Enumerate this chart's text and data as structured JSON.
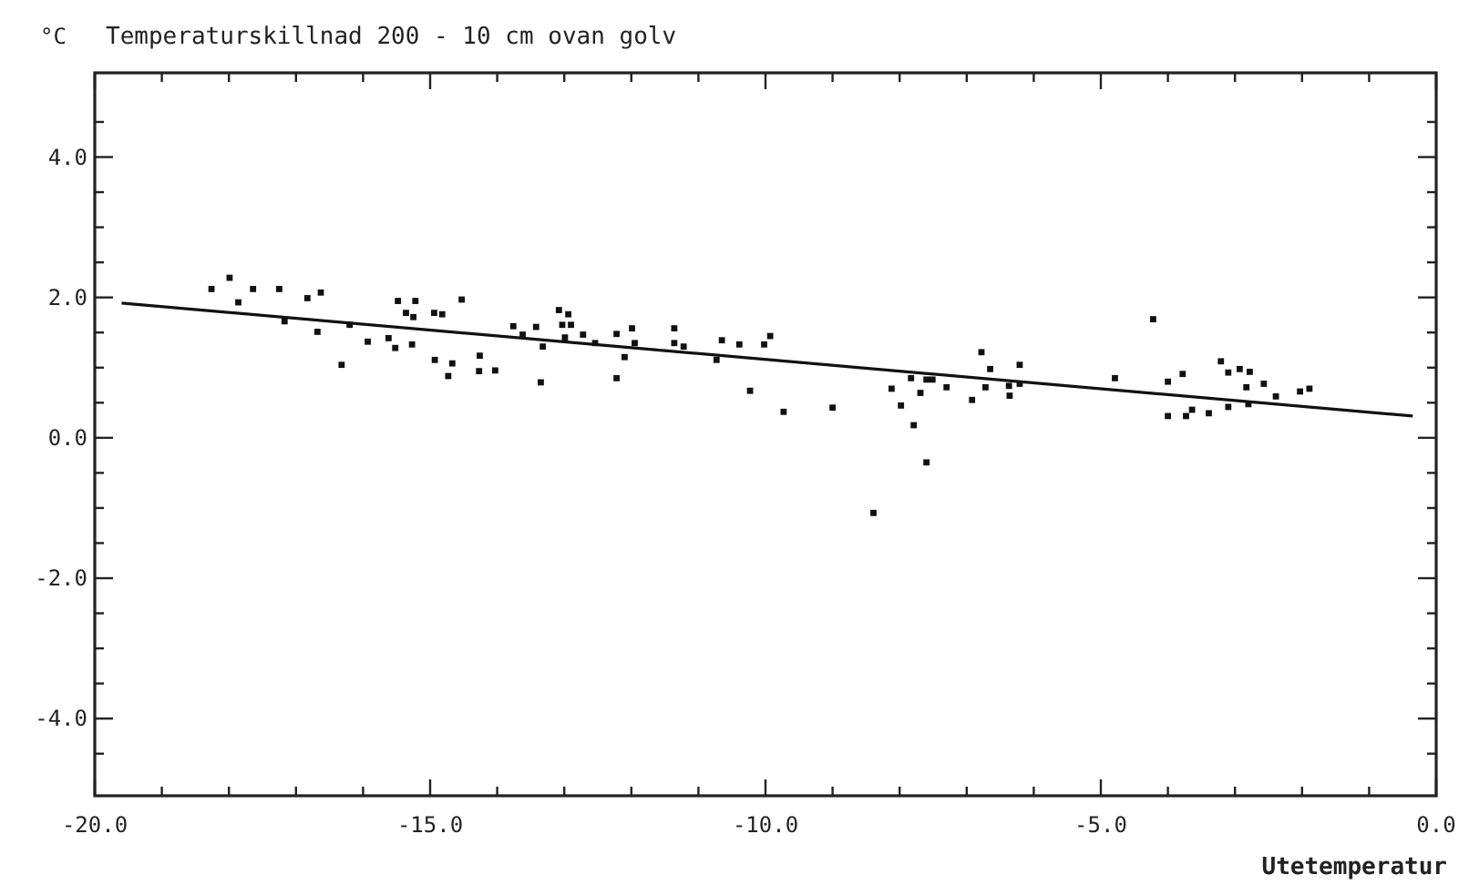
{
  "chart_data": {
    "type": "scatter",
    "title": "Temperaturskillnad 200 - 10 cm ovan golv",
    "ylabel": "°C",
    "xlabel": "Utetemperatur",
    "xlim": [
      -20,
      0
    ],
    "ylim": [
      -5.1,
      5.2
    ],
    "xticks": [
      {
        "value": -20,
        "label": "-20.0"
      },
      {
        "value": -19,
        "label": null
      },
      {
        "value": -18,
        "label": null
      },
      {
        "value": -17,
        "label": null
      },
      {
        "value": -16,
        "label": null
      },
      {
        "value": -15,
        "label": "-15.0"
      },
      {
        "value": -14,
        "label": null
      },
      {
        "value": -13,
        "label": null
      },
      {
        "value": -12,
        "label": null
      },
      {
        "value": -11,
        "label": null
      },
      {
        "value": -10,
        "label": "-10.0"
      },
      {
        "value": -9,
        "label": null
      },
      {
        "value": -8,
        "label": null
      },
      {
        "value": -7,
        "label": null
      },
      {
        "value": -6,
        "label": null
      },
      {
        "value": -5,
        "label": "-5.0"
      },
      {
        "value": -4,
        "label": null
      },
      {
        "value": -3,
        "label": null
      },
      {
        "value": -2,
        "label": null
      },
      {
        "value": -1,
        "label": null
      },
      {
        "value": 0,
        "label": "0.0"
      }
    ],
    "yticks": [
      {
        "value": -4.5,
        "label": null
      },
      {
        "value": -4,
        "label": "-4.0"
      },
      {
        "value": -3.5,
        "label": null
      },
      {
        "value": -3,
        "label": null
      },
      {
        "value": -2.5,
        "label": null
      },
      {
        "value": -2,
        "label": "-2.0"
      },
      {
        "value": -1.5,
        "label": null
      },
      {
        "value": -1,
        "label": null
      },
      {
        "value": -0.5,
        "label": null
      },
      {
        "value": 0,
        "label": "0.0"
      },
      {
        "value": 0.5,
        "label": null
      },
      {
        "value": 1,
        "label": null
      },
      {
        "value": 1.5,
        "label": null
      },
      {
        "value": 2,
        "label": "2.0"
      },
      {
        "value": 2.5,
        "label": null
      },
      {
        "value": 3,
        "label": null
      },
      {
        "value": 3.5,
        "label": null
      },
      {
        "value": 4,
        "label": "4.0"
      },
      {
        "value": 4.5,
        "label": null
      }
    ],
    "grid": false,
    "series": [
      {
        "marker": "square",
        "color": "#111111",
        "x": [
          -18.26,
          -17.99,
          -17.86,
          -17.64,
          -17.25,
          -17.17,
          -16.83,
          -16.63,
          -16.68,
          -16.32,
          -16.2,
          -15.93,
          -15.62,
          -15.52,
          -15.48,
          -15.36,
          -15.25,
          -15.22,
          -15.27,
          -14.94,
          -14.82,
          -14.93,
          -14.67,
          -14.73,
          -14.53,
          -14.26,
          -14.27,
          -14.03,
          -13.76,
          -13.62,
          -13.42,
          -13.35,
          -13.32,
          -13.08,
          -12.94,
          -13.03,
          -12.9,
          -12.99,
          -12.72,
          -12.54,
          -12.22,
          -12.22,
          -12.1,
          -11.99,
          -11.95,
          -11.36,
          -11.36,
          -11.22,
          -10.65,
          -10.73,
          -10.39,
          -10.23,
          -10.02,
          -9.93,
          -9.73,
          -9.0,
          -8.12,
          -7.98,
          -7.83,
          -7.79,
          -7.69,
          -7.6,
          -7.51,
          -7.3,
          -6.92,
          -6.78,
          -6.65,
          -6.72,
          -6.37,
          -6.36,
          -6.21,
          -6.21,
          -4.79,
          -4.22,
          -4.0,
          -4.0,
          -3.78,
          -3.73,
          -3.64,
          -3.39,
          -3.21,
          -3.1,
          -2.93,
          -2.78,
          -3.1,
          -2.83,
          -2.8,
          -2.57,
          -2.39,
          -2.03,
          -1.89,
          -7.6,
          -8.39
        ],
        "values": [
          2.12,
          2.28,
          1.93,
          2.12,
          2.12,
          1.66,
          1.99,
          2.07,
          1.51,
          1.04,
          1.61,
          1.37,
          1.42,
          1.28,
          1.95,
          1.78,
          1.72,
          1.95,
          1.33,
          1.78,
          1.76,
          1.11,
          1.06,
          0.88,
          1.97,
          1.17,
          0.95,
          0.96,
          1.59,
          1.47,
          1.58,
          0.79,
          1.3,
          1.82,
          1.76,
          1.61,
          1.61,
          1.43,
          1.47,
          1.35,
          1.48,
          0.85,
          1.15,
          1.56,
          1.35,
          1.56,
          1.35,
          1.3,
          1.39,
          1.11,
          1.33,
          0.67,
          1.33,
          1.45,
          0.37,
          0.43,
          0.7,
          0.46,
          0.85,
          0.18,
          0.64,
          0.83,
          0.83,
          0.72,
          0.54,
          1.22,
          0.98,
          0.72,
          0.74,
          0.6,
          1.04,
          0.77,
          0.85,
          1.69,
          0.8,
          0.31,
          0.91,
          0.31,
          0.4,
          0.35,
          1.09,
          0.93,
          0.98,
          0.94,
          0.44,
          0.72,
          0.48,
          0.77,
          0.59,
          0.66,
          0.7,
          -0.35,
          -1.07
        ]
      },
      {
        "type": "line",
        "color": "#111111",
        "x": [
          -19.6,
          -0.35
        ],
        "values": [
          1.92,
          0.31
        ]
      }
    ]
  }
}
